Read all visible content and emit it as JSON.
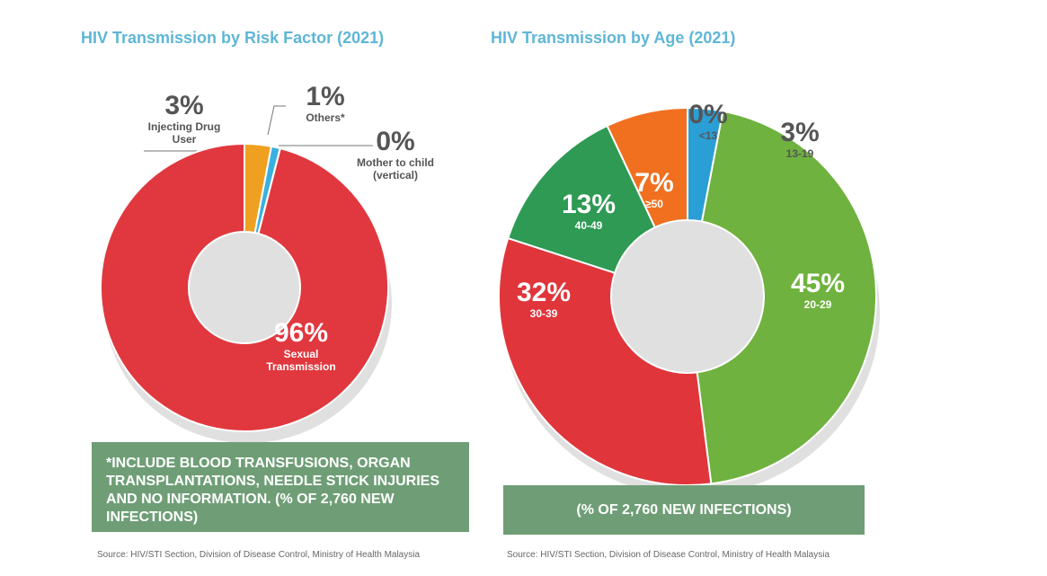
{
  "chart_data": [
    {
      "type": "donut",
      "title": "HIV Transmission by Risk Factor (2021)",
      "categories": [
        "Sexual Transmission",
        "Injecting Drug User",
        "Others*",
        "Mother to child (vertical)"
      ],
      "values": [
        96,
        3,
        1,
        0
      ],
      "value_labels": [
        "96%",
        "3%",
        "1%",
        "0%"
      ],
      "colors": [
        "#e0383e",
        "#f0a020",
        "#3ab0e0",
        "#f3b8c4"
      ],
      "note": "*INCLUDE BLOOD TRANSFUSIONS, ORGAN TRANSPLANTATIONS, NEEDLE STICK INJURIES AND NO INFORMATION. (% OF 2,760 NEW INFECTIONS)",
      "source": "Source: HIV/STI Section, Division of Disease Control, Ministry of Health Malaysia"
    },
    {
      "type": "donut",
      "title": "HIV Transmission by Age (2021)",
      "categories": [
        "20-29",
        "30-39",
        "40-49",
        "≥50",
        "<13",
        "13-19"
      ],
      "values": [
        45,
        32,
        13,
        7,
        0,
        3
      ],
      "value_labels": [
        "45%",
        "32%",
        "13%",
        "7%",
        "0%",
        "3%"
      ],
      "colors": [
        "#6fb23f",
        "#e0353b",
        "#2e9a54",
        "#f07020",
        "#f3b8c4",
        "#2a9fd6"
      ],
      "note": "(% OF 2,760 NEW INFECTIONS)",
      "source": "Source: HIV/STI Section, Division of Disease Control, Ministry of Health Malaysia"
    }
  ]
}
